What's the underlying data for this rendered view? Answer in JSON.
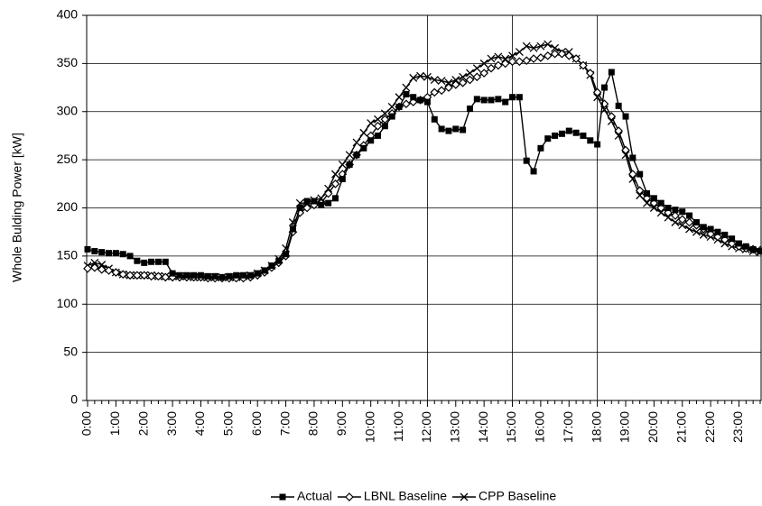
{
  "chart_data": {
    "type": "line",
    "y_label": "Whole Bulding Power [kW]",
    "categories": [
      "0:00",
      null,
      null,
      null,
      "1:00",
      null,
      null,
      null,
      "2:00",
      null,
      null,
      null,
      "3:00",
      null,
      null,
      null,
      "4:00",
      null,
      null,
      null,
      "5:00",
      null,
      null,
      null,
      "6:00",
      null,
      null,
      null,
      "7:00",
      null,
      null,
      null,
      "8:00",
      null,
      null,
      null,
      "9:00",
      null,
      null,
      null,
      "10:00",
      null,
      null,
      null,
      "11:00",
      null,
      null,
      null,
      "12:00",
      null,
      null,
      null,
      "13:00",
      null,
      null,
      null,
      "14:00",
      null,
      null,
      null,
      "15:00",
      null,
      null,
      null,
      "16:00",
      null,
      null,
      null,
      "17:00",
      null,
      null,
      null,
      "18:00",
      null,
      null,
      null,
      "19:00",
      null,
      null,
      null,
      "20:00",
      null,
      null,
      null,
      "21:00",
      null,
      null,
      null,
      "22:00",
      null,
      null,
      null,
      "23:00",
      null,
      null,
      null
    ],
    "series": [
      {
        "name": "Actual",
        "color": "#000000",
        "marker": "square",
        "values": [
          157,
          155,
          154,
          153,
          153,
          152,
          150,
          145,
          143,
          144,
          144,
          144,
          132,
          130,
          130,
          130,
          130,
          129,
          129,
          128,
          129,
          130,
          130,
          130,
          132,
          135,
          140,
          145,
          152,
          178,
          200,
          207,
          207,
          203,
          205,
          210,
          230,
          245,
          255,
          262,
          270,
          275,
          285,
          295,
          305,
          318,
          315,
          312,
          310,
          292,
          282,
          280,
          282,
          281,
          303,
          313,
          312,
          312,
          313,
          310,
          315,
          315,
          249,
          238,
          262,
          272,
          275,
          277,
          280,
          278,
          275,
          270,
          266,
          325,
          341,
          306,
          295,
          252,
          235,
          215,
          210,
          205,
          200,
          198,
          196,
          192,
          185,
          180,
          178,
          175,
          172,
          168,
          163,
          160,
          157,
          155
        ]
      },
      {
        "name": "LBNL Baseline",
        "color": "#000000",
        "marker": "diamond",
        "values": [
          137,
          138,
          136,
          135,
          133,
          131,
          130,
          130,
          130,
          129,
          129,
          128,
          128,
          128,
          128,
          128,
          128,
          127,
          127,
          127,
          127,
          127,
          127,
          128,
          130,
          133,
          138,
          143,
          150,
          175,
          195,
          200,
          203,
          205,
          215,
          225,
          235,
          245,
          255,
          265,
          275,
          285,
          292,
          298,
          305,
          308,
          310,
          312,
          315,
          320,
          322,
          325,
          328,
          330,
          333,
          336,
          340,
          345,
          348,
          350,
          352,
          352,
          353,
          355,
          356,
          358,
          360,
          360,
          358,
          355,
          348,
          340,
          320,
          308,
          295,
          280,
          260,
          235,
          218,
          210,
          205,
          200,
          195,
          192,
          188,
          185,
          182,
          178,
          173,
          170,
          167,
          163,
          160,
          158,
          157,
          156
        ]
      },
      {
        "name": "CPP Baseline",
        "color": "#000000",
        "marker": "cross",
        "values": [
          140,
          143,
          141,
          137,
          133,
          131,
          130,
          130,
          130,
          130,
          129,
          129,
          129,
          129,
          129,
          128,
          128,
          128,
          128,
          128,
          128,
          128,
          129,
          130,
          132,
          135,
          140,
          147,
          158,
          185,
          205,
          205,
          208,
          210,
          220,
          235,
          245,
          255,
          268,
          278,
          288,
          292,
          298,
          305,
          315,
          325,
          335,
          337,
          336,
          333,
          332,
          330,
          333,
          336,
          340,
          345,
          350,
          355,
          357,
          355,
          358,
          362,
          368,
          366,
          368,
          370,
          366,
          362,
          362,
          355,
          348,
          338,
          315,
          302,
          290,
          275,
          255,
          230,
          213,
          205,
          200,
          195,
          190,
          185,
          182,
          178,
          175,
          172,
          170,
          167,
          163,
          160,
          158,
          157,
          155,
          154
        ]
      }
    ],
    "event_lines": [
      "12:00",
      "15:00",
      "18:00"
    ],
    "ylim": [
      0,
      400
    ],
    "yticks": [
      0,
      50,
      100,
      150,
      200,
      250,
      300,
      350,
      400
    ],
    "grid": true,
    "legend": "bottom"
  }
}
